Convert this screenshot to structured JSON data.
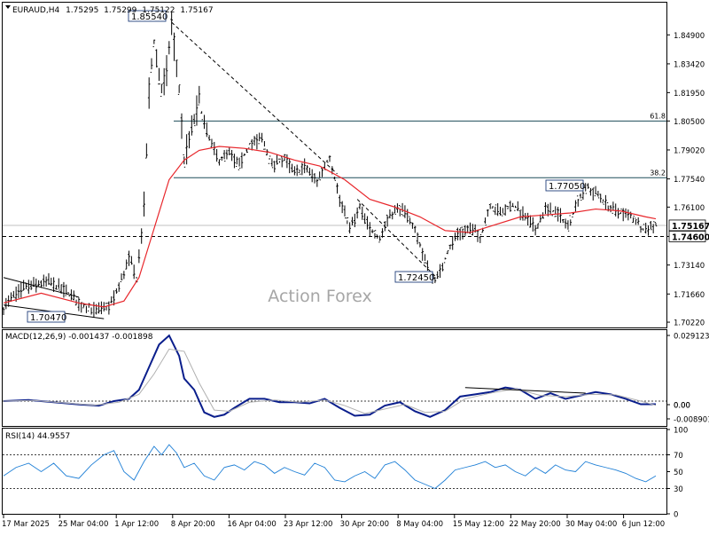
{
  "chart_data": {
    "type": "ohlc",
    "symbol_header": "EURAUD,H4",
    "ohlc_last": {
      "open": "1.75295",
      "high": "1.75299",
      "low": "1.75122",
      "close": "1.75167"
    },
    "watermark": "Action Forex",
    "price_axis": {
      "ylim": [
        1.6995,
        1.865
      ],
      "ticks": [
        "1.84900",
        "1.83420",
        "1.81950",
        "1.80500",
        "1.79020",
        "1.77540",
        "1.76100",
        "1.74600",
        "1.73140",
        "1.71660",
        "1.70220"
      ]
    },
    "x_labels": [
      "17 Mar 2025",
      "25 Mar 04:00",
      "1 Apr 12:00",
      "8 Apr 20:00",
      "16 Apr 04:00",
      "23 Apr 12:00",
      "30 Apr 20:00",
      "8 May 04:00",
      "15 May 12:00",
      "22 May 20:00",
      "30 May 04:00",
      "6 Jun 12:00"
    ],
    "current_price": "1.75167",
    "support_level": {
      "value": 1.746,
      "label": "1.74600"
    },
    "fib_levels": [
      {
        "value": 1.805,
        "label": "61.8"
      },
      {
        "value": 1.776,
        "label": "38.2"
      }
    ],
    "price_labels": [
      {
        "text": "1.85540",
        "value": 1.8554
      },
      {
        "text": "1.70470",
        "value": 1.7047
      },
      {
        "text": "1.72450",
        "value": 1.7245
      },
      {
        "text": "1.77050",
        "value": 1.7705
      }
    ],
    "close_path": [
      [
        0,
        1.71
      ],
      [
        8,
        1.72
      ],
      [
        18,
        1.723
      ],
      [
        25,
        1.718
      ],
      [
        30,
        1.712
      ],
      [
        37,
        1.708
      ],
      [
        42,
        1.71
      ],
      [
        46,
        1.72
      ],
      [
        50,
        1.735
      ],
      [
        53,
        1.725
      ],
      [
        56,
        1.76
      ],
      [
        58,
        1.82
      ],
      [
        60,
        1.845
      ],
      [
        63,
        1.82
      ],
      [
        65,
        1.83
      ],
      [
        67,
        1.8554
      ],
      [
        70,
        1.82
      ],
      [
        72,
        1.785
      ],
      [
        75,
        1.8
      ],
      [
        78,
        1.815
      ],
      [
        82,
        1.795
      ],
      [
        86,
        1.785
      ],
      [
        90,
        1.788
      ],
      [
        94,
        1.782
      ],
      [
        98,
        1.793
      ],
      [
        103,
        1.796
      ],
      [
        107,
        1.782
      ],
      [
        112,
        1.786
      ],
      [
        116,
        1.778
      ],
      [
        120,
        1.782
      ],
      [
        125,
        1.774
      ],
      [
        130,
        1.787
      ],
      [
        134,
        1.765
      ],
      [
        138,
        1.75
      ],
      [
        142,
        1.76
      ],
      [
        146,
        1.75
      ],
      [
        150,
        1.745
      ],
      [
        154,
        1.758
      ],
      [
        158,
        1.76
      ],
      [
        162,
        1.755
      ],
      [
        166,
        1.742
      ],
      [
        170,
        1.726
      ],
      [
        173,
        1.7245
      ],
      [
        177,
        1.738
      ],
      [
        181,
        1.748
      ],
      [
        186,
        1.75
      ],
      [
        190,
        1.746
      ],
      [
        194,
        1.762
      ],
      [
        198,
        1.758
      ],
      [
        203,
        1.762
      ],
      [
        208,
        1.756
      ],
      [
        212,
        1.75
      ],
      [
        216,
        1.76
      ],
      [
        221,
        1.758
      ],
      [
        225,
        1.751
      ],
      [
        229,
        1.765
      ],
      [
        233,
        1.7705
      ],
      [
        238,
        1.766
      ],
      [
        242,
        1.76
      ],
      [
        246,
        1.758
      ],
      [
        250,
        1.756
      ],
      [
        255,
        1.75
      ],
      [
        260,
        1.7517
      ]
    ],
    "ma_path": [
      [
        0,
        1.712
      ],
      [
        15,
        1.717
      ],
      [
        30,
        1.712
      ],
      [
        40,
        1.71
      ],
      [
        48,
        1.713
      ],
      [
        54,
        1.725
      ],
      [
        60,
        1.75
      ],
      [
        66,
        1.775
      ],
      [
        72,
        1.785
      ],
      [
        78,
        1.79
      ],
      [
        86,
        1.792
      ],
      [
        96,
        1.791
      ],
      [
        106,
        1.789
      ],
      [
        116,
        1.785
      ],
      [
        126,
        1.782
      ],
      [
        136,
        1.775
      ],
      [
        146,
        1.765
      ],
      [
        156,
        1.761
      ],
      [
        166,
        1.756
      ],
      [
        176,
        1.749
      ],
      [
        186,
        1.748
      ],
      [
        196,
        1.752
      ],
      [
        206,
        1.756
      ],
      [
        216,
        1.757
      ],
      [
        226,
        1.758
      ],
      [
        236,
        1.76
      ],
      [
        246,
        1.759
      ],
      [
        256,
        1.756
      ],
      [
        260,
        1.755
      ]
    ],
    "trendlines": [
      {
        "from": [
          0,
          1.725
        ],
        "to": [
          30,
          1.715
        ],
        "style": "solid"
      },
      {
        "from": [
          0,
          1.711
        ],
        "to": [
          40,
          1.704
        ],
        "style": "solid"
      },
      {
        "from": [
          67,
          1.8554
        ],
        "to": [
          133,
          1.778
        ],
        "style": "dashed"
      },
      {
        "from": [
          141,
          1.765
        ],
        "to": [
          173,
          1.7245
        ],
        "style": "dashed"
      }
    ],
    "macd": {
      "label": "MACD(12,26,9) -0.001437 -0.001898",
      "ylim": [
        -0.011,
        0.031
      ],
      "ticks": [
        "0.029123",
        "0.00",
        "0.00",
        "-0.008901"
      ],
      "macd_path": [
        [
          0,
          0.0
        ],
        [
          10,
          0.0005
        ],
        [
          20,
          -0.0005
        ],
        [
          30,
          -0.0015
        ],
        [
          38,
          -0.002
        ],
        [
          44,
          0.0
        ],
        [
          50,
          0.001
        ],
        [
          54,
          0.005
        ],
        [
          58,
          0.015
        ],
        [
          62,
          0.025
        ],
        [
          66,
          0.029
        ],
        [
          70,
          0.02
        ],
        [
          72,
          0.01
        ],
        [
          76,
          0.005
        ],
        [
          80,
          -0.005
        ],
        [
          84,
          -0.007
        ],
        [
          88,
          -0.006
        ],
        [
          92,
          -0.003
        ],
        [
          98,
          0.001
        ],
        [
          104,
          0.001
        ],
        [
          110,
          -0.0005
        ],
        [
          116,
          -0.0005
        ],
        [
          122,
          -0.001
        ],
        [
          128,
          0.001
        ],
        [
          134,
          -0.003
        ],
        [
          140,
          -0.0065
        ],
        [
          146,
          -0.006
        ],
        [
          152,
          -0.002
        ],
        [
          158,
          -0.0005
        ],
        [
          164,
          -0.0045
        ],
        [
          170,
          -0.007
        ],
        [
          176,
          -0.004
        ],
        [
          182,
          0.002
        ],
        [
          188,
          0.003
        ],
        [
          194,
          0.004
        ],
        [
          200,
          0.006
        ],
        [
          206,
          0.005
        ],
        [
          212,
          0.001
        ],
        [
          218,
          0.0035
        ],
        [
          224,
          0.001
        ],
        [
          230,
          0.0025
        ],
        [
          236,
          0.004
        ],
        [
          242,
          0.003
        ],
        [
          248,
          0.001
        ],
        [
          254,
          -0.0014
        ],
        [
          260,
          -0.0014
        ]
      ],
      "signal_path": [
        [
          0,
          0.0
        ],
        [
          12,
          0.0003
        ],
        [
          24,
          -0.0008
        ],
        [
          36,
          -0.0018
        ],
        [
          46,
          -0.0005
        ],
        [
          54,
          0.003
        ],
        [
          60,
          0.012
        ],
        [
          66,
          0.023
        ],
        [
          72,
          0.022
        ],
        [
          78,
          0.008
        ],
        [
          84,
          -0.004
        ],
        [
          90,
          -0.0045
        ],
        [
          98,
          -0.0005
        ],
        [
          108,
          0.0005
        ],
        [
          118,
          -0.0005
        ],
        [
          128,
          0.0005
        ],
        [
          136,
          -0.002
        ],
        [
          144,
          -0.0055
        ],
        [
          152,
          -0.0035
        ],
        [
          160,
          -0.0015
        ],
        [
          168,
          -0.005
        ],
        [
          176,
          -0.0045
        ],
        [
          184,
          0.001
        ],
        [
          194,
          0.0035
        ],
        [
          204,
          0.0055
        ],
        [
          214,
          0.0025
        ],
        [
          224,
          0.002
        ],
        [
          234,
          0.003
        ],
        [
          244,
          0.0028
        ],
        [
          254,
          0.0
        ],
        [
          260,
          -0.0019
        ]
      ],
      "trendline": {
        "from": [
          184,
          0.006
        ],
        "to": [
          232,
          0.0035
        ]
      }
    },
    "rsi": {
      "label": "RSI(14) 44.9557",
      "ylim": [
        0,
        100
      ],
      "ticks": [
        "100",
        "70",
        "50",
        "30",
        "0"
      ],
      "path": [
        [
          0,
          45
        ],
        [
          5,
          55
        ],
        [
          10,
          60
        ],
        [
          15,
          50
        ],
        [
          20,
          60
        ],
        [
          25,
          45
        ],
        [
          30,
          42
        ],
        [
          35,
          58
        ],
        [
          40,
          70
        ],
        [
          44,
          75
        ],
        [
          48,
          50
        ],
        [
          52,
          40
        ],
        [
          56,
          62
        ],
        [
          60,
          80
        ],
        [
          63,
          70
        ],
        [
          66,
          82
        ],
        [
          69,
          72
        ],
        [
          72,
          55
        ],
        [
          76,
          60
        ],
        [
          80,
          45
        ],
        [
          84,
          40
        ],
        [
          88,
          55
        ],
        [
          92,
          58
        ],
        [
          96,
          52
        ],
        [
          100,
          62
        ],
        [
          104,
          58
        ],
        [
          108,
          48
        ],
        [
          112,
          55
        ],
        [
          116,
          50
        ],
        [
          120,
          46
        ],
        [
          124,
          60
        ],
        [
          128,
          55
        ],
        [
          132,
          40
        ],
        [
          136,
          38
        ],
        [
          140,
          45
        ],
        [
          144,
          50
        ],
        [
          148,
          42
        ],
        [
          152,
          58
        ],
        [
          156,
          62
        ],
        [
          160,
          52
        ],
        [
          164,
          40
        ],
        [
          168,
          35
        ],
        [
          172,
          30
        ],
        [
          176,
          40
        ],
        [
          180,
          52
        ],
        [
          184,
          55
        ],
        [
          188,
          58
        ],
        [
          192,
          62
        ],
        [
          196,
          55
        ],
        [
          200,
          58
        ],
        [
          204,
          50
        ],
        [
          208,
          45
        ],
        [
          212,
          55
        ],
        [
          216,
          48
        ],
        [
          220,
          58
        ],
        [
          224,
          52
        ],
        [
          228,
          50
        ],
        [
          232,
          62
        ],
        [
          236,
          58
        ],
        [
          240,
          55
        ],
        [
          244,
          52
        ],
        [
          248,
          48
        ],
        [
          252,
          42
        ],
        [
          256,
          38
        ],
        [
          260,
          45
        ]
      ]
    }
  }
}
